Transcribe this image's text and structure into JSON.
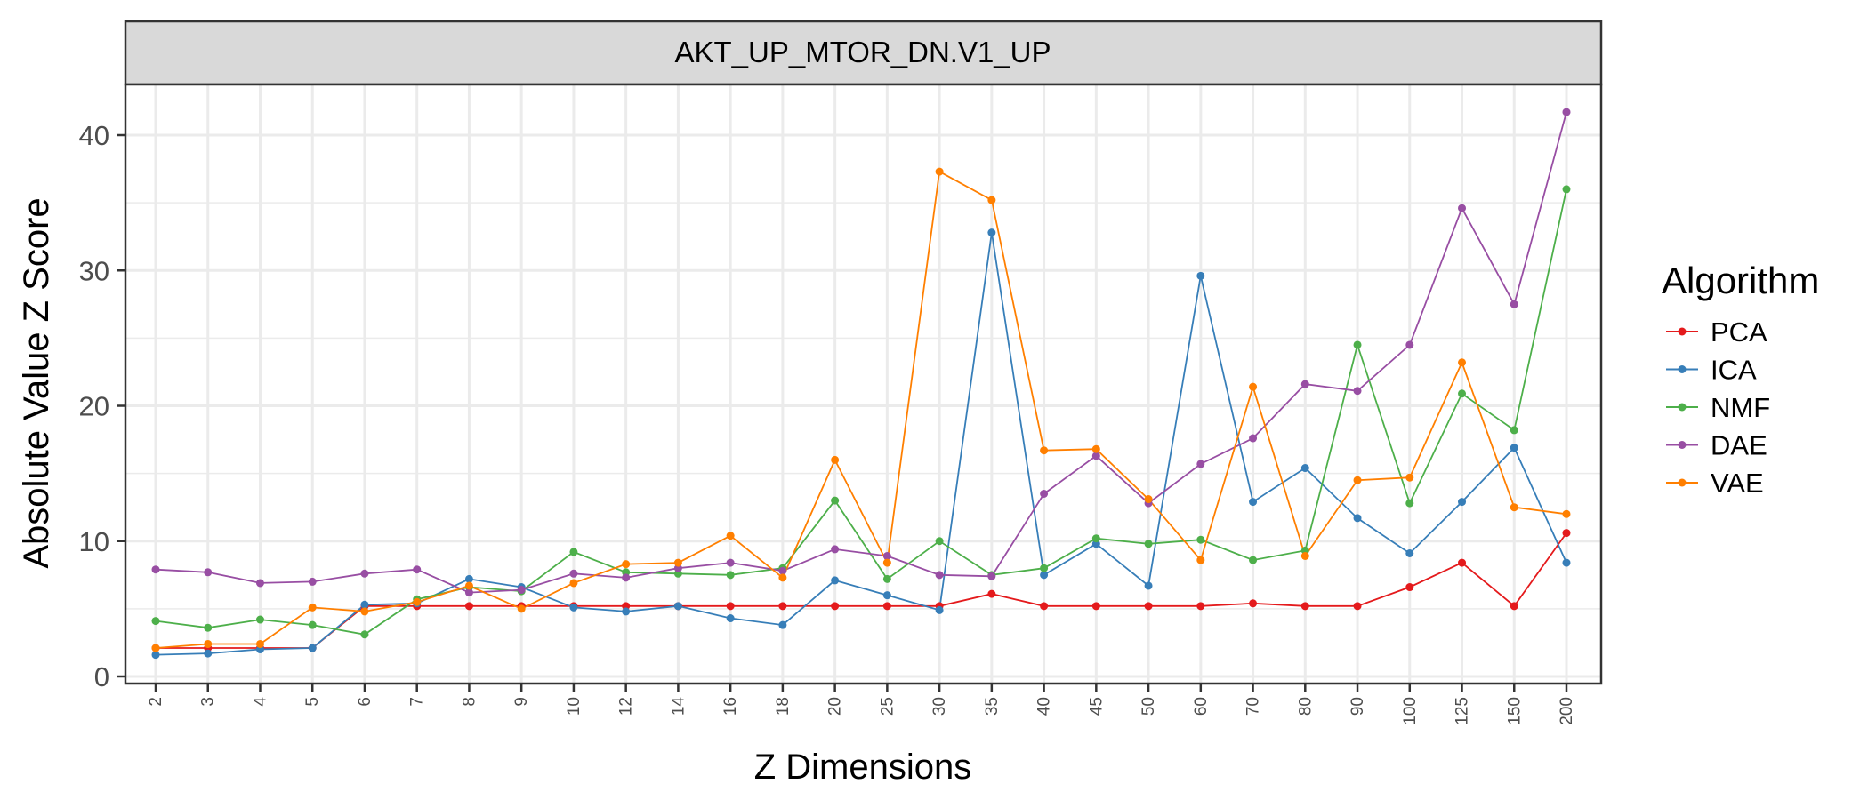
{
  "chart_data": {
    "type": "line",
    "title": "AKT_UP_MTOR_DN.V1_UP",
    "xlabel": "Z Dimensions",
    "ylabel": "Absolute Value Z Score",
    "legend_title": "Algorithm",
    "legend_position": "right",
    "grid": true,
    "ylim": [
      0,
      44
    ],
    "yticks": [
      0,
      10,
      20,
      30,
      40
    ],
    "categories": [
      "2",
      "3",
      "4",
      "5",
      "6",
      "7",
      "8",
      "9",
      "10",
      "12",
      "14",
      "16",
      "18",
      "20",
      "25",
      "30",
      "35",
      "40",
      "45",
      "50",
      "60",
      "70",
      "80",
      "90",
      "100",
      "125",
      "150",
      "200"
    ],
    "series": [
      {
        "name": "PCA",
        "color": "#e41a1c",
        "values": [
          2.1,
          2.1,
          2.1,
          2.1,
          5.2,
          5.2,
          5.2,
          5.2,
          5.2,
          5.2,
          5.2,
          5.2,
          5.2,
          5.2,
          5.2,
          5.2,
          6.1,
          5.2,
          5.2,
          5.2,
          5.2,
          5.4,
          5.2,
          5.2,
          6.6,
          8.4,
          5.2,
          10.6
        ]
      },
      {
        "name": "ICA",
        "color": "#377eb8",
        "values": [
          1.6,
          1.7,
          2.0,
          2.1,
          5.3,
          5.4,
          7.2,
          6.6,
          5.1,
          4.8,
          5.2,
          4.3,
          3.8,
          7.1,
          6.0,
          4.9,
          32.8,
          7.5,
          9.8,
          6.7,
          29.6,
          12.9,
          15.4,
          11.7,
          9.1,
          12.9,
          16.9,
          8.4
        ]
      },
      {
        "name": "NMF",
        "color": "#4daf4a",
        "values": [
          4.1,
          3.6,
          4.2,
          3.8,
          3.1,
          5.7,
          6.6,
          6.3,
          9.2,
          7.7,
          7.6,
          7.5,
          8.0,
          13.0,
          7.2,
          10.0,
          7.5,
          8.0,
          10.2,
          9.8,
          10.1,
          8.6,
          9.3,
          24.5,
          12.8,
          20.9,
          18.2,
          36.0
        ]
      },
      {
        "name": "DAE",
        "color": "#984ea3",
        "values": [
          7.9,
          7.7,
          6.9,
          7.0,
          7.6,
          7.9,
          6.2,
          6.4,
          7.6,
          7.3,
          8.0,
          8.4,
          7.8,
          9.4,
          8.9,
          7.5,
          7.4,
          13.5,
          16.3,
          12.8,
          15.7,
          17.6,
          21.6,
          21.1,
          24.5,
          34.6,
          27.5,
          41.7
        ]
      },
      {
        "name": "VAE",
        "color": "#ff7f00",
        "values": [
          2.1,
          2.4,
          2.4,
          5.1,
          4.8,
          5.5,
          6.7,
          5.0,
          6.9,
          8.3,
          8.4,
          10.4,
          7.3,
          16.0,
          8.4,
          37.3,
          35.2,
          16.7,
          16.8,
          13.1,
          8.6,
          21.4,
          8.9,
          14.5,
          14.7,
          23.2,
          12.5,
          12.0
        ]
      }
    ]
  }
}
